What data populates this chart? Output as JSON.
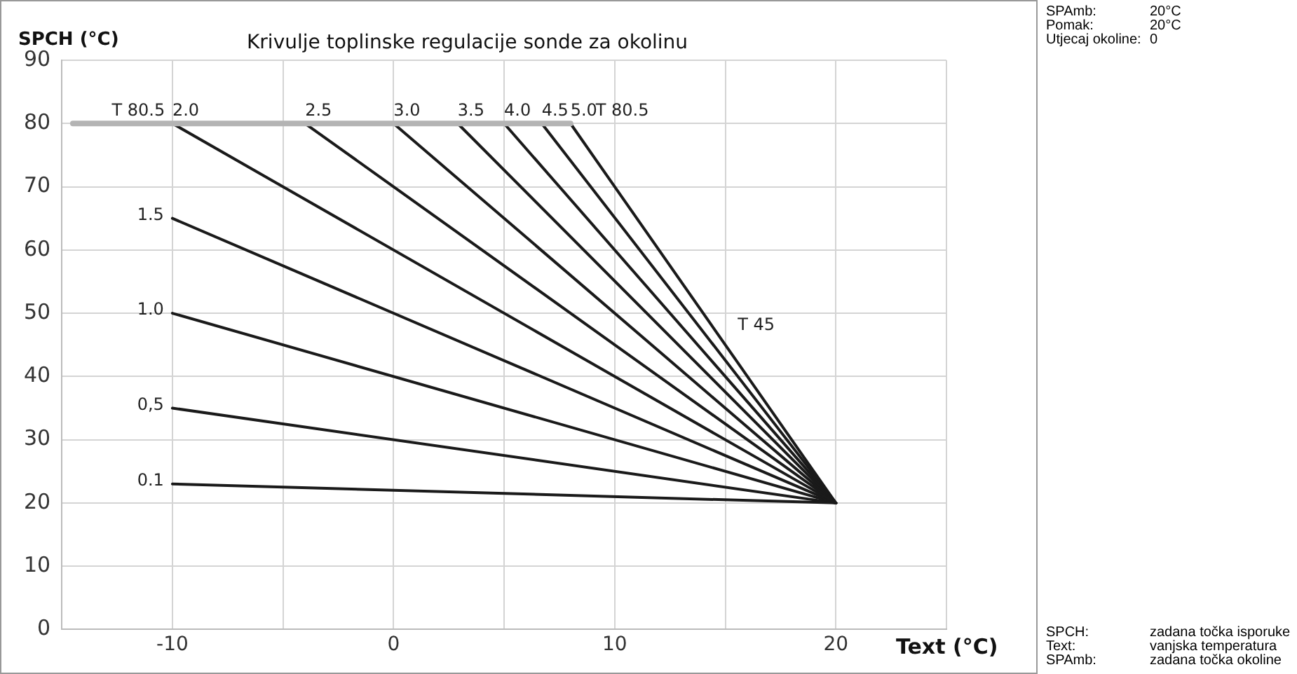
{
  "chart_data": {
    "type": "line",
    "title": "Krivulje toplinske regulacije sonde za okolinu",
    "xlabel": "Text (°C)",
    "ylabel": "SPCH (°C)",
    "xlim": [
      -15,
      25
    ],
    "xticks": [
      {
        "value": -15,
        "label": null
      },
      -10,
      {
        "value": -5,
        "label": null
      },
      0,
      {
        "value": 5,
        "label": null
      },
      10,
      {
        "value": 15,
        "label": null
      },
      20,
      {
        "value": 25,
        "label": null
      }
    ],
    "ylim": [
      0,
      90
    ],
    "yticks": [
      0,
      10,
      20,
      30,
      40,
      50,
      60,
      70,
      80,
      90
    ],
    "grid": true,
    "legend": false,
    "marker": "none",
    "line_style": "solid",
    "series": [
      {
        "color": "#b4b4b4",
        "x": [
          -14.5,
          8
        ],
        "values": [
          80,
          80
        ]
      },
      {
        "name": "2.0",
        "color": "#1a1a1a",
        "x": [
          -10,
          20
        ],
        "values": [
          80,
          20
        ]
      },
      {
        "name": "2.5",
        "color": "#1a1a1a",
        "x": [
          -4,
          20
        ],
        "values": [
          80,
          20
        ]
      },
      {
        "name": "3.0",
        "color": "#1a1a1a",
        "x": [
          0,
          20
        ],
        "values": [
          80,
          20
        ]
      },
      {
        "name": "3.5",
        "color": "#1a1a1a",
        "x": [
          2.9,
          20
        ],
        "values": [
          80,
          20
        ]
      },
      {
        "name": "4.0",
        "color": "#1a1a1a",
        "x": [
          5,
          20
        ],
        "values": [
          80,
          20
        ]
      },
      {
        "name": "4.5",
        "color": "#1a1a1a",
        "x": [
          6.7,
          20
        ],
        "values": [
          80,
          20
        ]
      },
      {
        "name": "5.0",
        "color": "#1a1a1a",
        "x": [
          8,
          20
        ],
        "values": [
          80,
          20
        ]
      },
      {
        "name": "1.5",
        "color": "#1a1a1a",
        "x": [
          -10,
          20
        ],
        "values": [
          65,
          20
        ]
      },
      {
        "name": "1.0",
        "color": "#1a1a1a",
        "x": [
          -10,
          20
        ],
        "values": [
          50,
          20
        ]
      },
      {
        "name": "0,5",
        "color": "#1a1a1a",
        "x": [
          -10,
          20
        ],
        "values": [
          35,
          20
        ]
      },
      {
        "name": "0.1",
        "color": "#1a1a1a",
        "x": [
          -10,
          20
        ],
        "values": [
          23,
          20
        ]
      }
    ],
    "annotations": [
      {
        "text": "T 80.5",
        "x": -13.5,
        "y": 80
      },
      {
        "text": "T 80.5",
        "x": 8,
        "y": 80
      },
      {
        "text": "T 45",
        "x": 14.8,
        "y": 46
      },
      "SPAmb:",
      "20°C",
      "Pomak:",
      "20°C",
      "Utjecaj okoline:",
      "0",
      "SPCH:",
      "zadana točka isporuke",
      "Text:",
      "vanjska temperatura",
      "SPAmb:",
      "zadana točka okoline"
    ]
  }
}
